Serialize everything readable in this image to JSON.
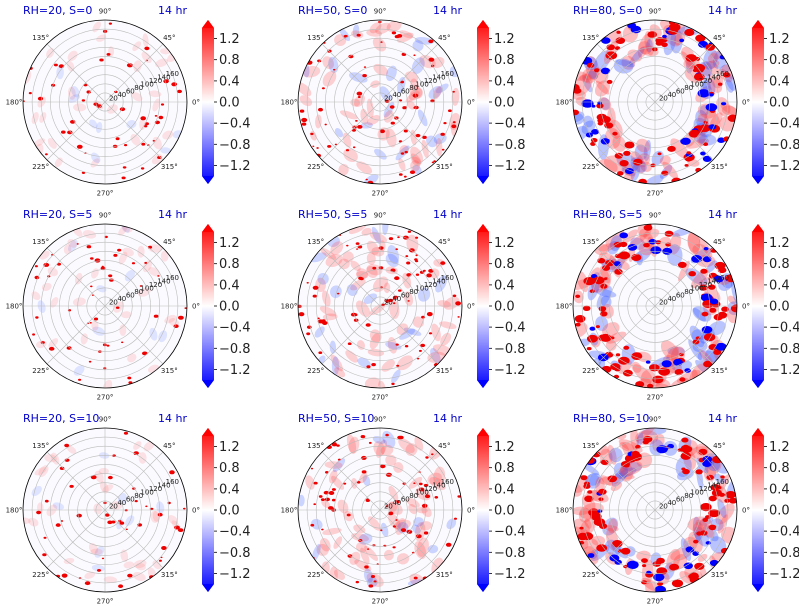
{
  "figure": {
    "title_color": "#0000cc",
    "colormap": "bwr",
    "colors": {
      "negative": "#0000ff",
      "zero": "#ffffff",
      "positive": "#ff0000"
    },
    "time_label": "14 hr"
  },
  "chart_data": [
    {
      "type": "heatmap",
      "projection": "polar",
      "title": "RH=20, S=0",
      "time": "14 hr",
      "rh": 20,
      "s": 0,
      "theta_ticks": [
        "90°",
        "45°",
        "0°",
        "315°",
        "270°",
        "225°",
        "180°",
        "135°"
      ],
      "r_ticks": [
        "20",
        "40",
        "60",
        "80",
        "100",
        "120",
        "140",
        "160"
      ],
      "r_max": 180,
      "colorbar": {
        "ticks": [
          "1.2",
          "0.8",
          "0.4",
          "0.0",
          "−0.4",
          "−0.8",
          "−1.2"
        ],
        "vmin": -1.4,
        "vmax": 1.4
      }
    },
    {
      "type": "heatmap",
      "projection": "polar",
      "title": "RH=50, S=0",
      "time": "14 hr",
      "rh": 50,
      "s": 0,
      "theta_ticks": [
        "90°",
        "45°",
        "0°",
        "315°",
        "270°",
        "225°",
        "180°",
        "135°"
      ],
      "r_ticks": [
        "20",
        "40",
        "60",
        "80",
        "100",
        "120",
        "140",
        "160"
      ],
      "r_max": 180,
      "colorbar": {
        "ticks": [
          "1.2",
          "0.8",
          "0.4",
          "0.0",
          "−0.4",
          "−0.8",
          "−1.2"
        ],
        "vmin": -1.4,
        "vmax": 1.4
      }
    },
    {
      "type": "heatmap",
      "projection": "polar",
      "title": "RH=80, S=0",
      "time": "14 hr",
      "rh": 80,
      "s": 0,
      "theta_ticks": [
        "90°",
        "45°",
        "0°",
        "315°",
        "270°",
        "225°",
        "180°",
        "135°"
      ],
      "r_ticks": [
        "20",
        "40",
        "60",
        "80",
        "100",
        "120",
        "140",
        "160"
      ],
      "r_max": 180,
      "colorbar": {
        "ticks": [
          "1.2",
          "0.8",
          "0.4",
          "0.0",
          "−0.4",
          "−0.8",
          "−1.2"
        ],
        "vmin": -1.4,
        "vmax": 1.4
      }
    },
    {
      "type": "heatmap",
      "projection": "polar",
      "title": "RH=20, S=5",
      "time": "14 hr",
      "rh": 20,
      "s": 5,
      "theta_ticks": [
        "90°",
        "45°",
        "0°",
        "315°",
        "270°",
        "225°",
        "180°",
        "135°"
      ],
      "r_ticks": [
        "20",
        "40",
        "60",
        "80",
        "100",
        "120",
        "140",
        "160"
      ],
      "r_max": 180,
      "colorbar": {
        "ticks": [
          "1.2",
          "0.8",
          "0.4",
          "0.0",
          "−0.4",
          "−0.8",
          "−1.2"
        ],
        "vmin": -1.4,
        "vmax": 1.4
      }
    },
    {
      "type": "heatmap",
      "projection": "polar",
      "title": "RH=50, S=5",
      "time": "14 hr",
      "rh": 50,
      "s": 5,
      "theta_ticks": [
        "90°",
        "45°",
        "0°",
        "315°",
        "270°",
        "225°",
        "180°",
        "135°"
      ],
      "r_ticks": [
        "20",
        "40",
        "60",
        "80",
        "100",
        "120",
        "140",
        "160"
      ],
      "r_max": 180,
      "colorbar": {
        "ticks": [
          "1.2",
          "0.8",
          "0.4",
          "0.0",
          "−0.4",
          "−0.8",
          "−1.2"
        ],
        "vmin": -1.4,
        "vmax": 1.4
      }
    },
    {
      "type": "heatmap",
      "projection": "polar",
      "title": "RH=80, S=5",
      "time": "14 hr",
      "rh": 80,
      "s": 5,
      "theta_ticks": [
        "90°",
        "45°",
        "0°",
        "315°",
        "270°",
        "225°",
        "180°",
        "135°"
      ],
      "r_ticks": [
        "20",
        "40",
        "60",
        "80",
        "100",
        "120",
        "140",
        "160"
      ],
      "r_max": 180,
      "colorbar": {
        "ticks": [
          "1.2",
          "0.8",
          "0.4",
          "0.0",
          "−0.4",
          "−0.8",
          "−1.2"
        ],
        "vmin": -1.4,
        "vmax": 1.4
      }
    },
    {
      "type": "heatmap",
      "projection": "polar",
      "title": "RH=20, S=10",
      "time": "14 hr",
      "rh": 20,
      "s": 10,
      "theta_ticks": [
        "90°",
        "45°",
        "0°",
        "315°",
        "270°",
        "225°",
        "180°",
        "135°"
      ],
      "r_ticks": [
        "20",
        "40",
        "60",
        "80",
        "100",
        "120",
        "140",
        "160"
      ],
      "r_max": 180,
      "colorbar": {
        "ticks": [
          "1.2",
          "0.8",
          "0.4",
          "0.0",
          "−0.4",
          "−0.8",
          "−1.2"
        ],
        "vmin": -1.4,
        "vmax": 1.4
      }
    },
    {
      "type": "heatmap",
      "projection": "polar",
      "title": "RH=50, S=10",
      "time": "14 hr",
      "rh": 50,
      "s": 10,
      "theta_ticks": [
        "90°",
        "45°",
        "0°",
        "315°",
        "270°",
        "225°",
        "180°",
        "135°"
      ],
      "r_ticks": [
        "20",
        "40",
        "60",
        "80",
        "100",
        "120",
        "140",
        "160"
      ],
      "r_max": 180,
      "colorbar": {
        "ticks": [
          "1.2",
          "0.8",
          "0.4",
          "0.0",
          "−0.4",
          "−0.8",
          "−1.2"
        ],
        "vmin": -1.4,
        "vmax": 1.4
      }
    },
    {
      "type": "heatmap",
      "projection": "polar",
      "title": "RH=80, S=10",
      "time": "14 hr",
      "rh": 80,
      "s": 10,
      "theta_ticks": [
        "90°",
        "45°",
        "0°",
        "315°",
        "270°",
        "225°",
        "180°",
        "135°"
      ],
      "r_ticks": [
        "20",
        "40",
        "60",
        "80",
        "100",
        "120",
        "140",
        "160"
      ],
      "r_max": 180,
      "colorbar": {
        "ticks": [
          "1.2",
          "0.8",
          "0.4",
          "0.0",
          "−0.4",
          "−0.8",
          "−1.2"
        ],
        "vmin": -1.4,
        "vmax": 1.4
      }
    }
  ]
}
